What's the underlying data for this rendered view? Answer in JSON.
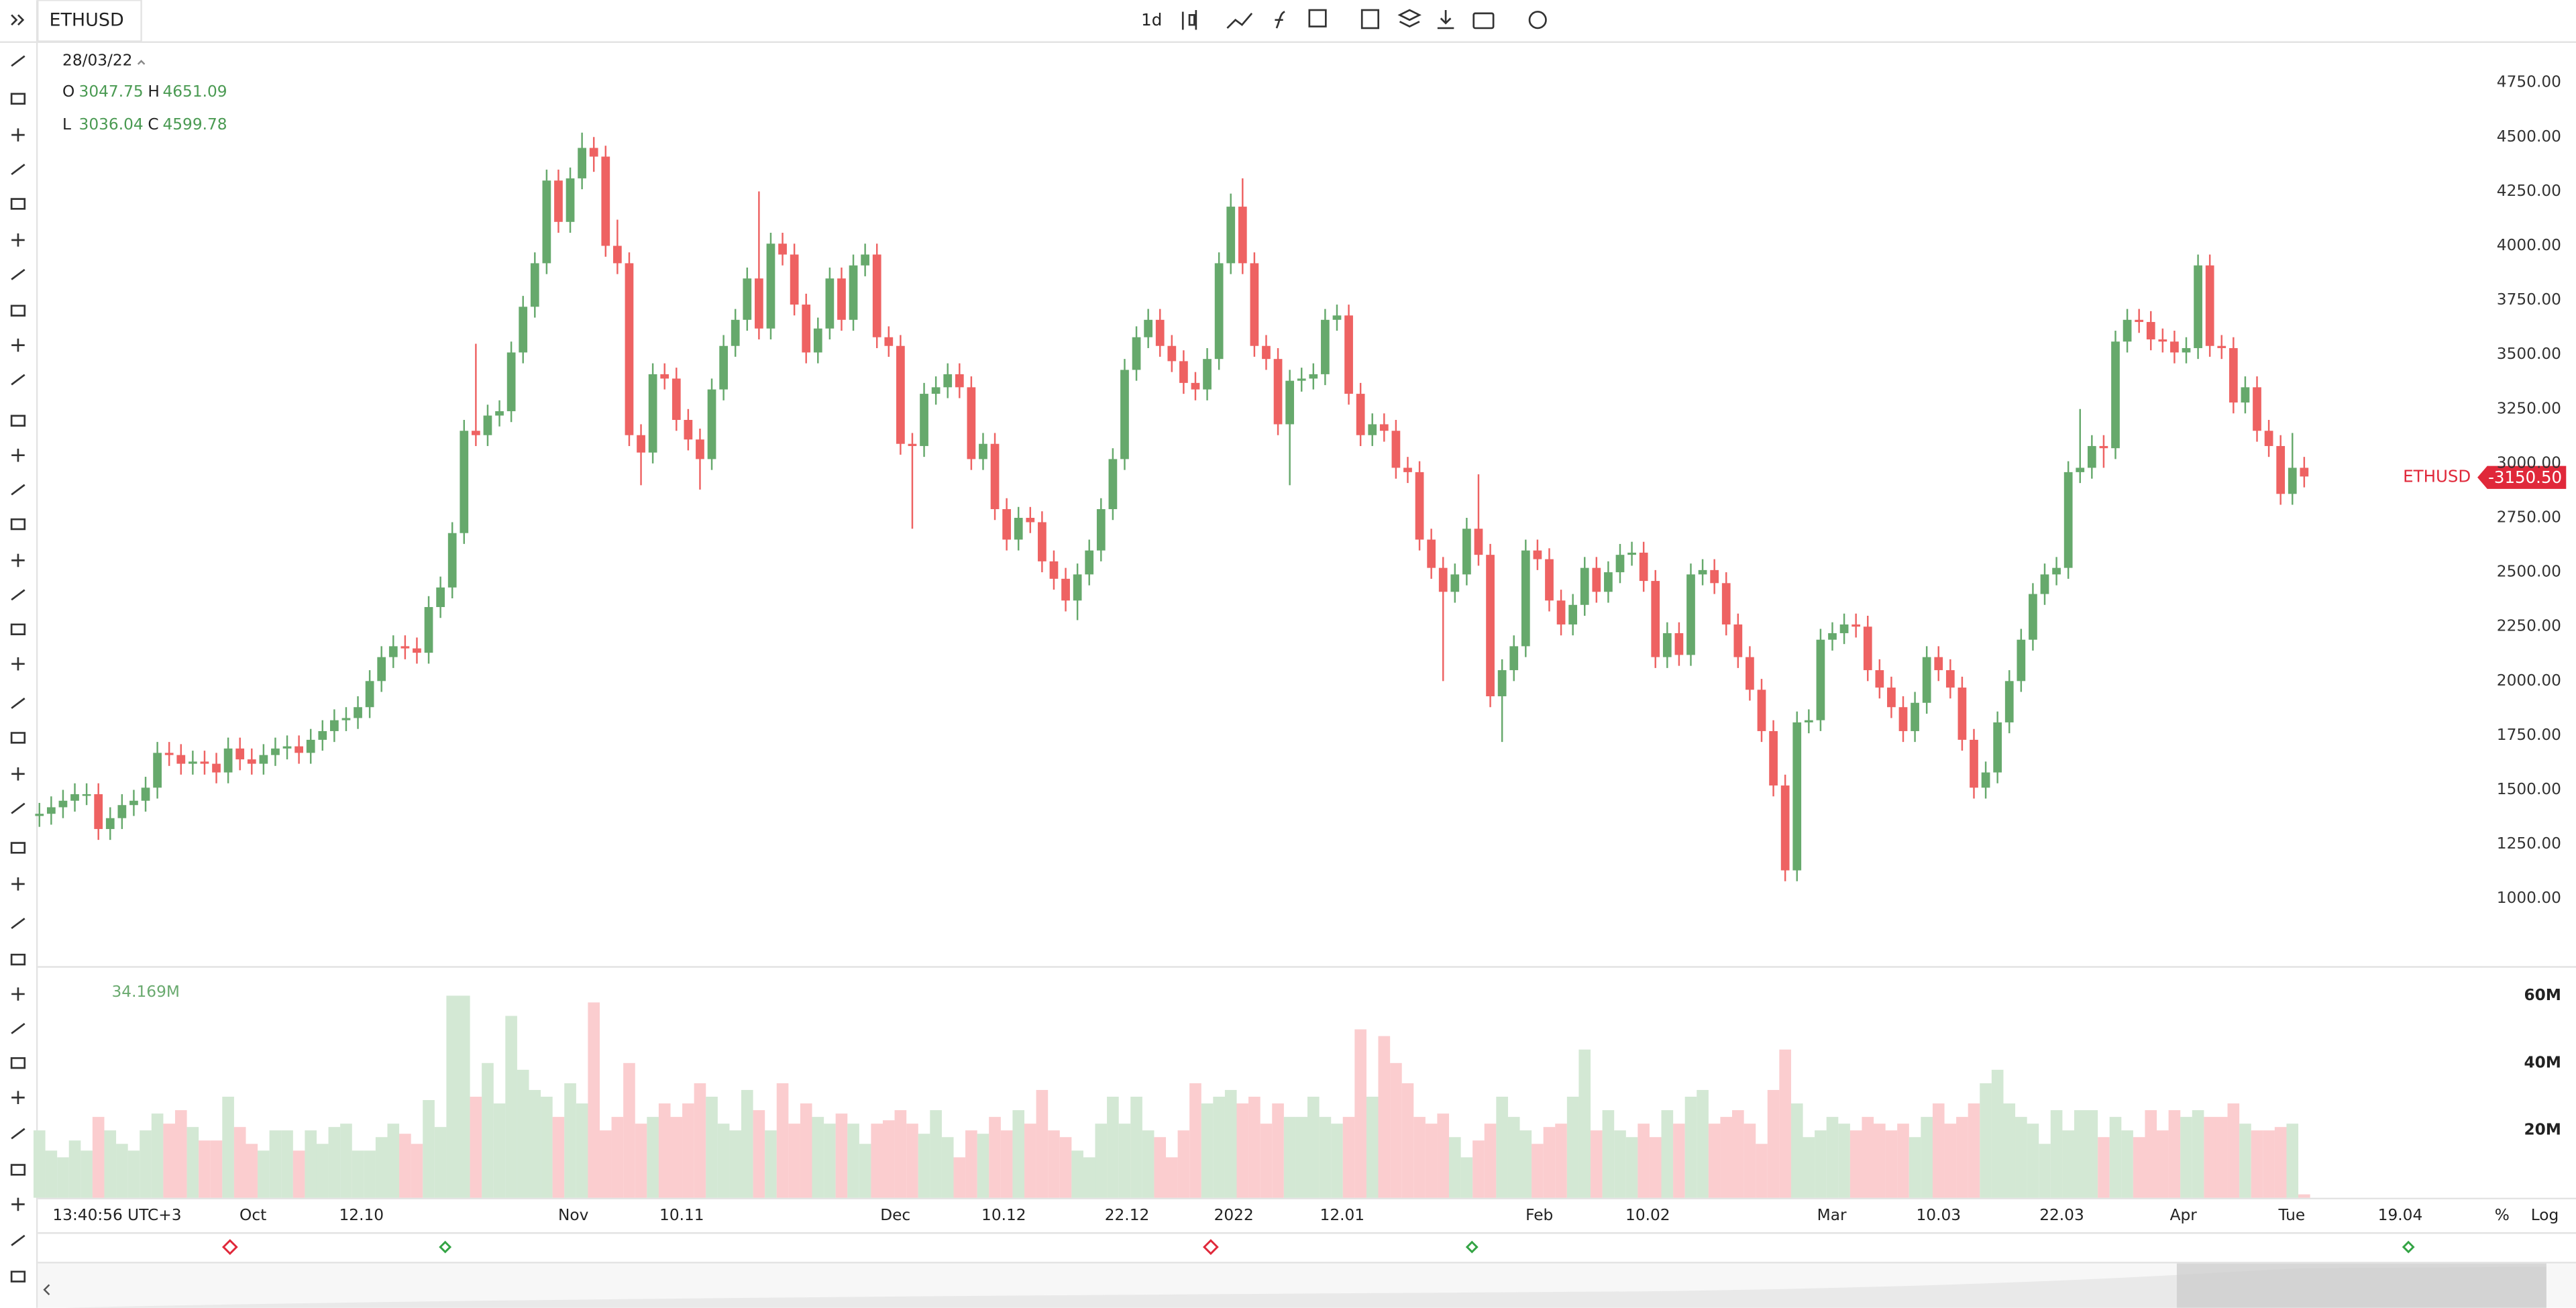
{
  "toolbar": {
    "symbol": "ETHUSD",
    "interval": "1d"
  },
  "header": {
    "date": "28/03/22",
    "o_label": "O",
    "o": "3047.75",
    "h_label": "H",
    "h": "4651.09",
    "l_label": "L",
    "l": "3036.04",
    "c_label": "C",
    "c": "4599.78"
  },
  "volume_label": "34.169M",
  "last_price": {
    "symbol": "ETHUSD",
    "price": "-3150.50"
  },
  "time_axis": {
    "clock": "13:40:56 UTC+3",
    "labels": [
      "Oct",
      "12.10",
      "Nov",
      "10.11",
      "Dec",
      "10.12",
      "22.12",
      "2022",
      "12.01",
      "Feb",
      "10.02",
      "Mar",
      "10.03",
      "22.03",
      "Apr",
      "Tue",
      "19.04"
    ],
    "percent": "%",
    "log": "Log"
  },
  "chart_data": {
    "type": "candlestick",
    "up_color": "#66a96c",
    "down_color": "#ee6262",
    "volume_up_color": "#d3e8d4",
    "volume_down_color": "#fbcdcf",
    "grid": false,
    "ylim": [
      690,
      4940
    ],
    "yticks": [
      {
        "value": 1000,
        "label": "1000.00"
      },
      {
        "value": 1250,
        "label": "1250.00"
      },
      {
        "value": 1500,
        "label": "1500.00"
      },
      {
        "value": 1750,
        "label": "1750.00"
      },
      {
        "value": 2000,
        "label": "2000.00"
      },
      {
        "value": 2250,
        "label": "2250.00"
      },
      {
        "value": 2500,
        "label": "2500.00"
      },
      {
        "value": 2750,
        "label": "2750.00"
      },
      {
        "value": 3000,
        "label": "3000.00"
      },
      {
        "value": 3250,
        "label": "3250.00"
      },
      {
        "value": 3500,
        "label": "3500.00"
      },
      {
        "value": 3750,
        "label": "3750.00"
      },
      {
        "value": 4000,
        "label": "4000.00"
      },
      {
        "value": 4250,
        "label": "4250.00"
      },
      {
        "value": 4500,
        "label": "4500.00"
      },
      {
        "value": 4750,
        "label": "4750.00"
      }
    ],
    "volume_lim": [
      0,
      68
    ],
    "volume_ticks": [
      {
        "value": 20,
        "label": "20M"
      },
      {
        "value": 40,
        "label": "40M"
      },
      {
        "value": 60,
        "label": "60M"
      }
    ],
    "open": [
      1380,
      1390,
      1420,
      1450,
      1480,
      1480,
      1320,
      1370,
      1430,
      1450,
      1510,
      1670,
      1660,
      1620,
      1630,
      1620,
      1580,
      1690,
      1640,
      1620,
      1660,
      1690,
      1700,
      1670,
      1730,
      1770,
      1820,
      1830,
      1880,
      2000,
      2110,
      2160,
      2150,
      2130,
      2340,
      2430,
      2680,
      3150,
      3130,
      3220,
      3240,
      3510,
      3720,
      3920,
      4300,
      4110,
      4310,
      4450,
      4410,
      4000,
      3920,
      3130,
      3050,
      3410,
      3390,
      3200,
      3110,
      3020,
      3340,
      3540,
      3660,
      3850,
      3620,
      4010,
      3960,
      3730,
      3510,
      3620,
      3850,
      3660,
      3910,
      3960,
      3580,
      3540,
      3090,
      3080,
      3320,
      3350,
      3410,
      3350,
      3020,
      3090,
      2790,
      2650,
      2750,
      2730,
      2550,
      2470,
      2370,
      2490,
      2600,
      2790,
      3020,
      3430,
      3580,
      3660,
      3540,
      3470,
      3370,
      3340,
      3480,
      3920,
      4180,
      3920,
      3540,
      3480,
      3180,
      3380,
      3390,
      3410,
      3660,
      3680,
      3320,
      3130,
      3180,
      3150,
      2980,
      2960,
      2650,
      2520,
      2410,
      2490,
      2700,
      2580,
      1930,
      2050,
      2160,
      2600,
      2560,
      2370,
      2260,
      2350,
      2520,
      2410,
      2500,
      2580,
      2590,
      2460,
      2110,
      2220,
      2120,
      2490,
      2510,
      2450,
      2260,
      2110,
      1960,
      1770,
      1520,
      1130,
      1810,
      1820,
      2190,
      2220,
      2260,
      2250,
      2050,
      1970,
      1880,
      1770,
      1900,
      2110,
      2050,
      1970,
      1730,
      1510,
      1580,
      1810,
      2000,
      2190,
      2400,
      2490,
      2520,
      2960,
      2980,
      3080,
      3070,
      3560,
      3660,
      3650,
      3570,
      3560,
      3510,
      3530,
      3910,
      3540,
      3530,
      3280,
      3350,
      3150,
      3080,
      2860,
      2980
    ],
    "high": [
      1440,
      1470,
      1500,
      1530,
      1530,
      1530,
      1420,
      1480,
      1500,
      1560,
      1720,
      1720,
      1710,
      1680,
      1680,
      1670,
      1740,
      1740,
      1690,
      1710,
      1740,
      1750,
      1750,
      1780,
      1820,
      1870,
      1880,
      1930,
      2050,
      2160,
      2210,
      2210,
      2200,
      2390,
      2480,
      2730,
      3200,
      3550,
      3270,
      3290,
      3560,
      3770,
      3970,
      4350,
      4350,
      4360,
      4520,
      4500,
      4460,
      4120,
      3970,
      3180,
      3460,
      3460,
      3440,
      3250,
      3160,
      3390,
      3590,
      3710,
      3900,
      4250,
      4060,
      4060,
      4010,
      3780,
      3670,
      3900,
      3900,
      3960,
      4010,
      4010,
      3630,
      3590,
      3140,
      3370,
      3400,
      3460,
      3460,
      3400,
      3140,
      3140,
      2840,
      2800,
      2800,
      2780,
      2600,
      2520,
      2540,
      2650,
      2840,
      3070,
      3480,
      3630,
      3710,
      3710,
      3590,
      3520,
      3420,
      3530,
      3970,
      4240,
      4310,
      3970,
      3590,
      3530,
      3430,
      3440,
      3460,
      3710,
      3730,
      3730,
      3370,
      3230,
      3230,
      3200,
      3030,
      3010,
      2700,
      2570,
      2540,
      2750,
      2950,
      2630,
      2100,
      2210,
      2650,
      2650,
      2610,
      2420,
      2400,
      2570,
      2570,
      2550,
      2630,
      2640,
      2640,
      2510,
      2270,
      2270,
      2540,
      2560,
      2560,
      2500,
      2310,
      2160,
      2010,
      1820,
      1570,
      1860,
      1870,
      2240,
      2270,
      2310,
      2310,
      2300,
      2100,
      2020,
      1930,
      1950,
      2160,
      2160,
      2100,
      2020,
      1780,
      1630,
      1860,
      2050,
      2240,
      2450,
      2540,
      2570,
      3010,
      3250,
      3130,
      3130,
      3610,
      3710,
      3710,
      3700,
      3620,
      3610,
      3580,
      3960,
      3960,
      3590,
      3580,
      3400,
      3400,
      3200,
      3130,
      3140,
      3030
    ],
    "low": [
      1330,
      1340,
      1370,
      1400,
      1430,
      1270,
      1270,
      1320,
      1380,
      1400,
      1460,
      1610,
      1570,
      1570,
      1570,
      1530,
      1530,
      1590,
      1570,
      1570,
      1610,
      1640,
      1620,
      1620,
      1680,
      1720,
      1770,
      1780,
      1830,
      1950,
      2060,
      2100,
      2080,
      2080,
      2290,
      2380,
      2630,
      3080,
      3080,
      3170,
      3190,
      3460,
      3670,
      3870,
      4060,
      4060,
      4260,
      4340,
      3950,
      3870,
      3080,
      2900,
      3000,
      3340,
      3150,
      3060,
      2880,
      2970,
      3290,
      3490,
      3610,
      3570,
      3570,
      3910,
      3680,
      3460,
      3460,
      3570,
      3610,
      3610,
      3860,
      3530,
      3490,
      3040,
      2700,
      3030,
      3270,
      3300,
      3300,
      2970,
      2970,
      2740,
      2600,
      2600,
      2680,
      2500,
      2420,
      2320,
      2280,
      2440,
      2550,
      2740,
      2970,
      3380,
      3530,
      3490,
      3420,
      3320,
      3290,
      3290,
      3430,
      3870,
      3870,
      3490,
      3430,
      3130,
      2900,
      3330,
      3340,
      3360,
      3610,
      3270,
      3080,
      3080,
      3100,
      2930,
      2910,
      2600,
      2470,
      2000,
      2360,
      2440,
      2530,
      1880,
      1720,
      2000,
      2110,
      2510,
      2320,
      2210,
      2210,
      2300,
      2360,
      2360,
      2450,
      2530,
      2410,
      2060,
      2060,
      2070,
      2070,
      2440,
      2400,
      2210,
      2060,
      1910,
      1720,
      1470,
      1080,
      1080,
      1760,
      1770,
      2140,
      2170,
      2200,
      2000,
      1920,
      1830,
      1720,
      1720,
      1850,
      2000,
      1920,
      1680,
      1460,
      1460,
      1530,
      1760,
      1950,
      2140,
      2350,
      2440,
      2470,
      2910,
      2930,
      2980,
      3020,
      3510,
      3600,
      3520,
      3510,
      3460,
      3460,
      3480,
      3490,
      3480,
      3230,
      3230,
      3100,
      3030,
      2810,
      2810,
      2890
    ],
    "close": [
      1390,
      1420,
      1450,
      1480,
      1480,
      1320,
      1370,
      1430,
      1450,
      1510,
      1670,
      1660,
      1620,
      1630,
      1620,
      1580,
      1690,
      1640,
      1620,
      1660,
      1690,
      1700,
      1670,
      1730,
      1770,
      1820,
      1830,
      1880,
      2000,
      2110,
      2160,
      2150,
      2130,
      2340,
      2430,
      2680,
      3150,
      3130,
      3220,
      3240,
      3510,
      3720,
      3920,
      4300,
      4110,
      4310,
      4450,
      4410,
      4000,
      3920,
      3130,
      3050,
      3410,
      3390,
      3200,
      3110,
      3020,
      3340,
      3540,
      3660,
      3850,
      3620,
      4010,
      3960,
      3730,
      3510,
      3620,
      3850,
      3660,
      3910,
      3960,
      3580,
      3540,
      3090,
      3080,
      3320,
      3350,
      3410,
      3350,
      3020,
      3090,
      2790,
      2650,
      2750,
      2730,
      2550,
      2470,
      2370,
      2490,
      2600,
      2790,
      3020,
      3430,
      3580,
      3660,
      3540,
      3470,
      3370,
      3340,
      3480,
      3920,
      4180,
      3920,
      3540,
      3480,
      3180,
      3380,
      3390,
      3410,
      3660,
      3680,
      3320,
      3130,
      3180,
      3150,
      2980,
      2960,
      2650,
      2520,
      2410,
      2490,
      2700,
      2580,
      1930,
      2050,
      2160,
      2600,
      2560,
      2370,
      2260,
      2350,
      2520,
      2410,
      2500,
      2580,
      2590,
      2460,
      2110,
      2220,
      2120,
      2490,
      2510,
      2450,
      2260,
      2110,
      1960,
      1770,
      1520,
      1130,
      1810,
      1820,
      2190,
      2220,
      2260,
      2250,
      2050,
      1970,
      1880,
      1770,
      1900,
      2110,
      2050,
      1970,
      1730,
      1510,
      1580,
      1810,
      2000,
      2190,
      2400,
      2490,
      2520,
      2960,
      2980,
      3080,
      3070,
      3560,
      3660,
      3650,
      3570,
      3560,
      3510,
      3530,
      3910,
      3540,
      3530,
      3280,
      3350,
      3150,
      3080,
      2860,
      2980,
      2940
    ],
    "volume": [
      20,
      14,
      12,
      17,
      14,
      24,
      20,
      16,
      14,
      20,
      25,
      22,
      26,
      21,
      17,
      17,
      30,
      21,
      16,
      14,
      20,
      20,
      14,
      20,
      16,
      21,
      22,
      14,
      14,
      18,
      22,
      19,
      16,
      29,
      21,
      60,
      60,
      30,
      40,
      28,
      54,
      38,
      32,
      30,
      24,
      34,
      28,
      58,
      20,
      24,
      40,
      22,
      24,
      28,
      24,
      28,
      34,
      30,
      22,
      20,
      32,
      26,
      20,
      34,
      22,
      28,
      24,
      22,
      25,
      22,
      16,
      22,
      23,
      26,
      22,
      19,
      26,
      18,
      12,
      20,
      19,
      24,
      20,
      26,
      22,
      32,
      20,
      18,
      14,
      12,
      22,
      30,
      22,
      30,
      20,
      18,
      12,
      20,
      34,
      28,
      30,
      32,
      28,
      30,
      22,
      28,
      24,
      24,
      30,
      24,
      22,
      24,
      50,
      30,
      48,
      40,
      34,
      24,
      22,
      25,
      18,
      12,
      17,
      22,
      30,
      24,
      20,
      16,
      21,
      22,
      30,
      44,
      20,
      26,
      20,
      18,
      22,
      18,
      26,
      22,
      30,
      32,
      22,
      24,
      26,
      22,
      16,
      32,
      44,
      28,
      18,
      20,
      24,
      22,
      20,
      24,
      22,
      20,
      22,
      18,
      24,
      28,
      22,
      24,
      28,
      34,
      38,
      28,
      24,
      22,
      16,
      26,
      20,
      26,
      26,
      18,
      24,
      20,
      18,
      26,
      20,
      26,
      24,
      26,
      24,
      24,
      28,
      22,
      20,
      20,
      21,
      22,
      1
    ]
  }
}
